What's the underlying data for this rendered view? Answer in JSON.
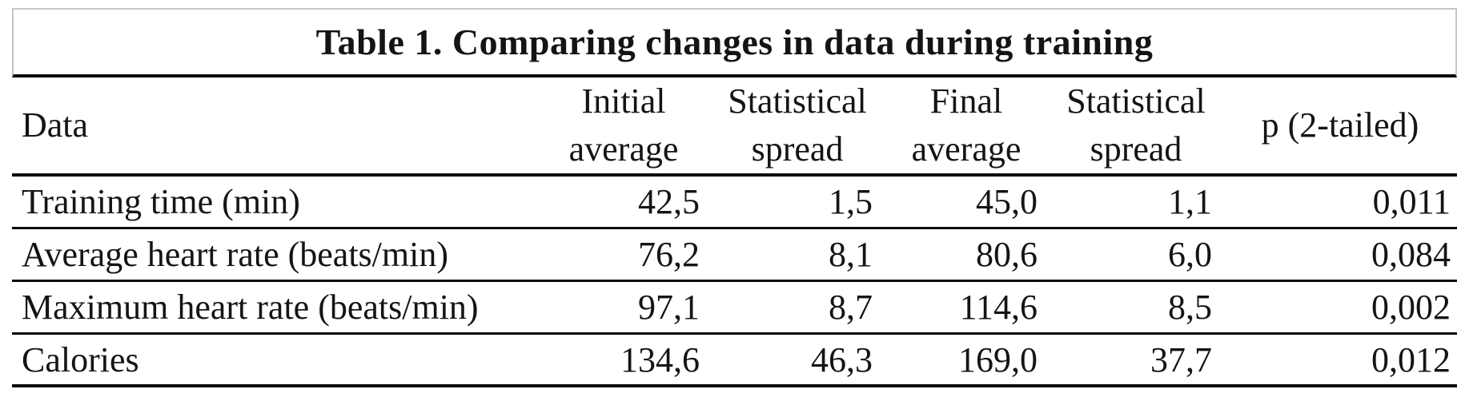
{
  "title": "Table 1. Comparing changes in data during training",
  "table": {
    "columns": {
      "data": "Data",
      "initial_average": "Initial\naverage",
      "statistical_spread_initial": "Statistical\nspread",
      "final_average": "Final\naverage",
      "statistical_spread_final": "Statistical\nspread",
      "p_two_tailed": "p (2-tailed)"
    },
    "rows": [
      {
        "data": "Training time (min)",
        "initial_average": "42,5",
        "statistical_spread_initial": "1,5",
        "final_average": "45,0",
        "statistical_spread_final": "1,1",
        "p_two_tailed": "0,011"
      },
      {
        "data": "Average heart rate (beats/min)",
        "initial_average": "76,2",
        "statistical_spread_initial": "8,1",
        "final_average": "80,6",
        "statistical_spread_final": "6,0",
        "p_two_tailed": "0,084"
      },
      {
        "data": "Maximum heart rate (beats/min)",
        "initial_average": "97,1",
        "statistical_spread_initial": "8,7",
        "final_average": "114,6",
        "statistical_spread_final": "8,5",
        "p_two_tailed": "0,002"
      },
      {
        "data": "Calories",
        "initial_average": "134,6",
        "statistical_spread_initial": "46,3",
        "final_average": "169,0",
        "statistical_spread_final": "37,7",
        "p_two_tailed": "0,012"
      }
    ]
  },
  "colors": {
    "rule": "#0a0a0a",
    "title_box_border": "#c6c6c6",
    "text": "#141414",
    "background": "#ffffff"
  }
}
